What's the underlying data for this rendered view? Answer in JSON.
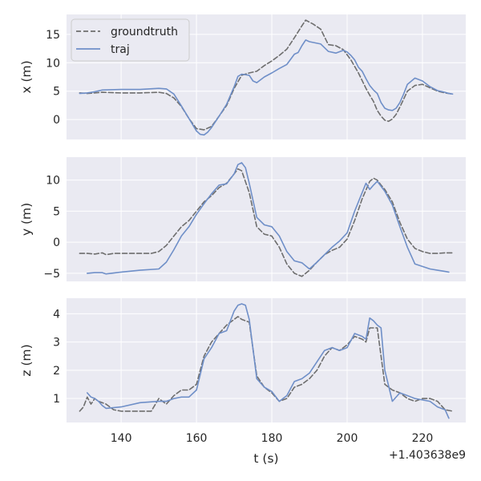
{
  "chart_data": {
    "type": "line",
    "colors": {
      "groundtruth": "#6e6e6e",
      "traj": "#6f8fc8",
      "panel_bg": "#eaeaf2",
      "grid": "#ffffff"
    },
    "x_axis": {
      "label": "t (s)",
      "ticks": [
        140,
        160,
        180,
        200,
        220
      ],
      "tick_labels": [
        "140",
        "160",
        "180",
        "200",
        "220"
      ],
      "offset_text": "+1.403638e9",
      "lim": [
        125.5,
        231.5
      ]
    },
    "legend": {
      "location": "top-left",
      "panel": 0,
      "entries": [
        {
          "name": "groundtruth",
          "style": "dashed"
        },
        {
          "name": "traj",
          "style": "solid"
        }
      ]
    },
    "subplots": [
      {
        "ylabel": "x (m)",
        "ylim": [
          -3.5,
          18.5
        ],
        "yticks": [
          0,
          5,
          10,
          15
        ],
        "ytick_labels": [
          "0",
          "5",
          "10",
          "15"
        ],
        "series": [
          {
            "name": "groundtruth",
            "x": [
              129,
              131,
              135,
              140,
              145,
              150,
              152,
              154,
              156,
              158,
              160,
              162,
              164,
              166,
              168,
              170,
              172,
              174,
              176,
              178,
              180,
              182,
              184,
              186,
              188,
              189,
              191,
              193,
              195,
              197,
              199,
              201,
              203,
              205,
              206,
              207,
              208,
              209,
              210,
              211,
              212,
              213,
              214,
              215,
              216,
              218,
              220,
              222,
              224,
              226,
              228
            ],
            "y": [
              4.7,
              4.6,
              4.8,
              4.7,
              4.7,
              4.8,
              4.6,
              3.8,
              2.3,
              0.2,
              -1.6,
              -1.8,
              -1.2,
              0.6,
              2.5,
              5.5,
              7.8,
              8.2,
              8.5,
              9.5,
              10.3,
              11.3,
              12.4,
              14.4,
              16.5,
              17.5,
              16.8,
              15.9,
              13.2,
              13.0,
              12.3,
              10.5,
              8.2,
              5.5,
              4.3,
              3.2,
              1.6,
              0.6,
              -0.1,
              -0.3,
              0.1,
              0.9,
              2.2,
              3.6,
              5.0,
              6.0,
              6.2,
              5.6,
              5.0,
              4.7,
              4.5
            ]
          },
          {
            "name": "traj",
            "x": [
              129,
              131,
              133,
              135,
              140,
              145,
              150,
              152,
              154,
              156,
              158,
              160,
              161,
              162,
              163,
              164,
              166,
              168,
              170,
              171,
              172,
              174,
              175,
              176,
              178,
              180,
              182,
              184,
              186,
              187,
              188,
              189,
              190,
              193,
              195,
              197,
              199,
              200,
              201,
              202,
              203,
              204,
              205,
              206,
              207,
              208,
              209,
              210,
              211,
              212,
              213,
              214,
              215,
              216,
              218,
              220,
              222,
              224,
              226,
              227,
              228
            ],
            "y": [
              4.6,
              4.7,
              4.9,
              5.2,
              5.3,
              5.3,
              5.5,
              5.4,
              4.5,
              2.4,
              0.2,
              -2.0,
              -2.6,
              -2.7,
              -2.2,
              -1.4,
              0.6,
              2.7,
              5.8,
              7.6,
              8.0,
              7.8,
              6.8,
              6.5,
              7.5,
              8.2,
              9.0,
              9.7,
              11.5,
              11.8,
              13.0,
              14.0,
              13.7,
              13.3,
              12.0,
              11.7,
              12.2,
              11.9,
              11.3,
              10.5,
              9.2,
              8.5,
              7.2,
              6.0,
              5.2,
              4.6,
              3.0,
              2.0,
              1.7,
              1.6,
              2.0,
              3.0,
              4.5,
              6.2,
              7.3,
              6.8,
              5.8,
              5.1,
              4.8,
              4.6,
              4.5
            ]
          }
        ]
      },
      {
        "ylabel": "y (m)",
        "ylim": [
          -6.3,
          13.7
        ],
        "yticks": [
          -5,
          0,
          5,
          10
        ],
        "ytick_labels": [
          "−5",
          "0",
          "5",
          "10"
        ],
        "series": [
          {
            "name": "groundtruth",
            "x": [
              129,
              131,
              133,
              135,
              136,
              138,
              140,
              145,
              148,
              150,
              152,
              154,
              156,
              158,
              160,
              162,
              164,
              166,
              168,
              170,
              171,
              172,
              174,
              176,
              178,
              180,
              182,
              184,
              186,
              188,
              190,
              192,
              194,
              196,
              198,
              200,
              202,
              204,
              206,
              207,
              208,
              209,
              210,
              212,
              214,
              216,
              218,
              220,
              222,
              224,
              226,
              228
            ],
            "y": [
              -1.8,
              -1.8,
              -1.9,
              -1.7,
              -2.0,
              -1.8,
              -1.8,
              -1.8,
              -1.8,
              -1.5,
              -0.5,
              1.0,
              2.5,
              3.5,
              5.0,
              6.5,
              7.5,
              8.8,
              9.5,
              11.0,
              11.8,
              11.5,
              8.0,
              2.5,
              1.3,
              1.0,
              -0.8,
              -3.5,
              -5.0,
              -5.5,
              -4.5,
              -3.2,
              -2.0,
              -1.3,
              -0.8,
              0.5,
              3.5,
              7.0,
              9.8,
              10.3,
              10.0,
              9.2,
              8.5,
              6.5,
              3.2,
              0.5,
              -1.0,
              -1.5,
              -1.8,
              -1.8,
              -1.7,
              -1.7
            ]
          },
          {
            "name": "traj",
            "x": [
              131,
              133,
              135,
              136,
              140,
              145,
              150,
              152,
              154,
              156,
              158,
              160,
              162,
              164,
              166,
              168,
              170,
              171,
              172,
              173,
              174,
              176,
              178,
              180,
              182,
              184,
              186,
              188,
              190,
              192,
              194,
              196,
              198,
              200,
              202,
              204,
              205,
              206,
              207,
              208,
              210,
              212,
              214,
              216,
              218,
              220,
              222,
              224,
              226,
              227
            ],
            "y": [
              -5.0,
              -4.9,
              -4.9,
              -5.1,
              -4.8,
              -4.5,
              -4.3,
              -3.2,
              -1.2,
              1.0,
              2.5,
              4.5,
              6.2,
              7.8,
              9.2,
              9.4,
              11.0,
              12.5,
              12.8,
              12.0,
              9.5,
              4.0,
              2.8,
              2.5,
              1.0,
              -1.5,
              -3.0,
              -3.3,
              -4.3,
              -3.2,
              -2.0,
              -0.8,
              0.2,
              1.5,
              5.0,
              8.0,
              9.5,
              8.5,
              9.2,
              9.8,
              8.2,
              6.0,
              2.5,
              -0.8,
              -3.5,
              -3.9,
              -4.3,
              -4.5,
              -4.7,
              -4.8
            ]
          }
        ]
      },
      {
        "ylabel": "z (m)",
        "ylim": [
          0.15,
          4.55
        ],
        "yticks": [
          1,
          2,
          3,
          4
        ],
        "ytick_labels": [
          "1",
          "2",
          "3",
          "4"
        ],
        "series": [
          {
            "name": "groundtruth",
            "x": [
              129,
              130,
              131,
              132,
              133,
              134,
              136,
              138,
              140,
              145,
              148,
              150,
              152,
              154,
              156,
              158,
              160,
              162,
              164,
              166,
              168,
              170,
              171,
              172,
              174,
              176,
              178,
              180,
              182,
              184,
              186,
              188,
              190,
              192,
              194,
              196,
              198,
              200,
              202,
              204,
              205,
              206,
              207,
              208,
              210,
              212,
              214,
              216,
              218,
              220,
              222,
              224,
              226,
              228
            ],
            "y": [
              0.55,
              0.7,
              1.05,
              0.8,
              1.0,
              0.9,
              0.8,
              0.6,
              0.55,
              0.55,
              0.55,
              1.0,
              0.8,
              1.1,
              1.3,
              1.3,
              1.5,
              2.5,
              3.0,
              3.3,
              3.6,
              3.8,
              3.9,
              3.8,
              3.7,
              1.8,
              1.4,
              1.2,
              0.9,
              1.0,
              1.4,
              1.5,
              1.7,
              2.0,
              2.5,
              2.8,
              2.7,
              2.9,
              3.2,
              3.1,
              3.0,
              3.5,
              3.5,
              3.5,
              1.5,
              1.3,
              1.2,
              1.0,
              0.9,
              1.0,
              1.0,
              0.9,
              0.6,
              0.55
            ]
          },
          {
            "name": "traj",
            "x": [
              131,
              132,
              133,
              134,
              135,
              136,
              140,
              145,
              150,
              152,
              154,
              156,
              158,
              160,
              162,
              164,
              166,
              168,
              170,
              171,
              172,
              173,
              174,
              176,
              178,
              180,
              182,
              184,
              186,
              188,
              190,
              192,
              194,
              196,
              198,
              200,
              202,
              204,
              205,
              206,
              207,
              208,
              209,
              210,
              212,
              214,
              216,
              218,
              220,
              222,
              224,
              226,
              227
            ],
            "y": [
              1.2,
              1.05,
              1.0,
              0.9,
              0.75,
              0.65,
              0.7,
              0.85,
              0.9,
              0.9,
              1.0,
              1.05,
              1.05,
              1.3,
              2.4,
              2.8,
              3.3,
              3.4,
              4.1,
              4.3,
              4.35,
              4.3,
              3.8,
              1.7,
              1.4,
              1.25,
              0.9,
              1.1,
              1.6,
              1.7,
              1.9,
              2.3,
              2.7,
              2.8,
              2.7,
              2.8,
              3.3,
              3.2,
              3.1,
              3.85,
              3.75,
              3.6,
              3.5,
              2.0,
              0.9,
              1.2,
              1.1,
              1.0,
              0.95,
              0.9,
              0.7,
              0.6,
              0.3
            ]
          }
        ]
      }
    ]
  }
}
